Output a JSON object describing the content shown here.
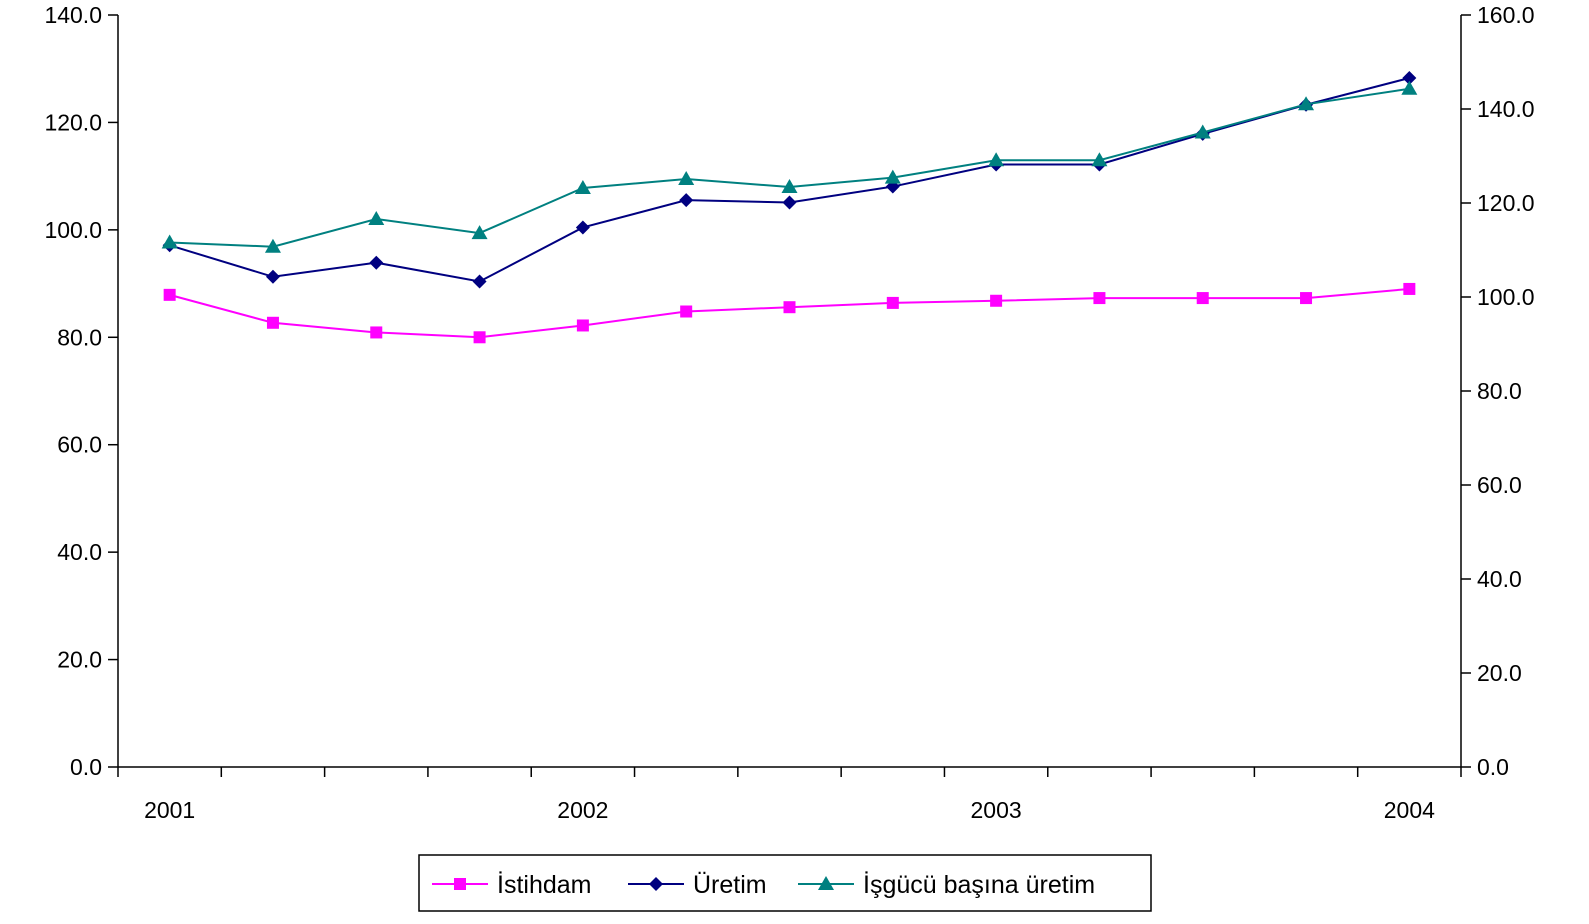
{
  "chart_data": {
    "type": "line",
    "title": "",
    "xlabel": "",
    "ylabel": "",
    "x_tick_labels": [
      {
        "label": "2001",
        "index": 0
      },
      {
        "label": "2002",
        "index": 4
      },
      {
        "label": "2003",
        "index": 8
      },
      {
        "label": "2004",
        "index": 12
      }
    ],
    "y_left": {
      "min": 0,
      "max": 140,
      "step": 20,
      "tick_labels": [
        "0.0",
        "20.0",
        "40.0",
        "60.0",
        "80.0",
        "100.0",
        "120.0",
        "140.0"
      ]
    },
    "y_right": {
      "min": 0,
      "max": 160,
      "step": 20,
      "tick_labels": [
        "0.0",
        "20.0",
        "40.0",
        "60.0",
        "80.0",
        "100.0",
        "120.0",
        "140.0",
        "160.0"
      ]
    },
    "grid": false,
    "legend_position": "bottom-center",
    "series": [
      {
        "name": "İstihdam",
        "axis": "left",
        "color": "#FF00FF",
        "marker": "square",
        "values": [
          87.9,
          82.7,
          80.9,
          80.0,
          82.2,
          84.8,
          85.6,
          86.4,
          86.8,
          87.3,
          87.3,
          87.3,
          89.0
        ]
      },
      {
        "name": "Üretim",
        "axis": "right",
        "color": "#000080",
        "marker": "diamond",
        "values": [
          111.0,
          104.3,
          107.3,
          103.3,
          114.8,
          120.6,
          120.1,
          123.5,
          128.2,
          128.2,
          134.7,
          140.9,
          146.6
        ]
      },
      {
        "name": "İşgücü başına üretim",
        "axis": "right",
        "color": "#008080",
        "marker": "triangle",
        "values": [
          111.6,
          110.7,
          116.6,
          113.6,
          123.2,
          125.1,
          123.4,
          125.4,
          129.1,
          129.1,
          135.0,
          141.0,
          144.3
        ]
      }
    ]
  }
}
